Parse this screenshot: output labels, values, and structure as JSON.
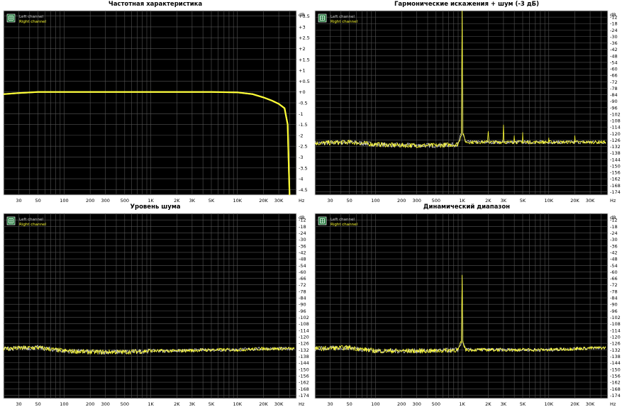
{
  "legend": {
    "left": "Left channel",
    "right": "Right channel"
  },
  "colors": {
    "background": "#000000",
    "grid": "#555555",
    "left": "#c8c8c8",
    "right": "#ffff33",
    "frame": "#d8d8d8",
    "axis_text": "#000000"
  },
  "x_ticks": [
    {
      "v": 30,
      "label": "30"
    },
    {
      "v": 50,
      "label": "50"
    },
    {
      "v": 100,
      "label": "100"
    },
    {
      "v": 200,
      "label": "200"
    },
    {
      "v": 300,
      "label": "300"
    },
    {
      "v": 500,
      "label": "500"
    },
    {
      "v": 1000,
      "label": "1K"
    },
    {
      "v": 2000,
      "label": "2K"
    },
    {
      "v": 3000,
      "label": "3K"
    },
    {
      "v": 5000,
      "label": "5K"
    },
    {
      "v": 10000,
      "label": "10K"
    },
    {
      "v": 20000,
      "label": "20K"
    },
    {
      "v": 30000,
      "label": "30K"
    }
  ],
  "x_unit": "Hz",
  "y_unit": "dB",
  "chart_data": [
    {
      "type": "line",
      "title": "Частотная характеристика",
      "x_scale": "log",
      "xlim": [
        20,
        48000
      ],
      "ylim": [
        -4.75,
        3.75
      ],
      "y_ticks": [
        {
          "v": 3.5,
          "label": "+3.5"
        },
        {
          "v": 3,
          "label": "+3"
        },
        {
          "v": 2.5,
          "label": "+2.5"
        },
        {
          "v": 2,
          "label": "+2"
        },
        {
          "v": 1.5,
          "label": "+1.5"
        },
        {
          "v": 1,
          "label": "+1"
        },
        {
          "v": 0.5,
          "label": "+0.5"
        },
        {
          "v": 0,
          "label": "+0"
        },
        {
          "v": -0.5,
          "label": "-0.5"
        },
        {
          "v": -1,
          "label": "-1"
        },
        {
          "v": -1.5,
          "label": "-1.5"
        },
        {
          "v": -2,
          "label": "-2"
        },
        {
          "v": -2.5,
          "label": "-2.5"
        },
        {
          "v": -3,
          "label": "-3"
        },
        {
          "v": -3.5,
          "label": "-3.5"
        },
        {
          "v": -4,
          "label": "-4"
        },
        {
          "v": -4.5,
          "label": "-4.5"
        }
      ],
      "series": [
        {
          "name": "Left channel",
          "noise": 0,
          "points": [
            [
              20,
              -0.1
            ],
            [
              30,
              -0.05
            ],
            [
              50,
              0
            ],
            [
              100,
              0
            ],
            [
              1000,
              0
            ],
            [
              5000,
              0
            ],
            [
              10000,
              -0.02
            ],
            [
              15000,
              -0.1
            ],
            [
              20000,
              -0.25
            ],
            [
              25000,
              -0.4
            ],
            [
              30000,
              -0.55
            ],
            [
              35000,
              -0.75
            ],
            [
              38000,
              -1.5
            ],
            [
              40000,
              -4.8
            ]
          ]
        },
        {
          "name": "Right channel",
          "noise": 0,
          "points": [
            [
              20,
              -0.1
            ],
            [
              30,
              -0.05
            ],
            [
              50,
              0
            ],
            [
              100,
              0
            ],
            [
              1000,
              0
            ],
            [
              5000,
              0
            ],
            [
              10000,
              -0.02
            ],
            [
              15000,
              -0.1
            ],
            [
              20000,
              -0.25
            ],
            [
              25000,
              -0.4
            ],
            [
              30000,
              -0.55
            ],
            [
              35000,
              -0.75
            ],
            [
              38000,
              -1.5
            ],
            [
              40000,
              -4.8
            ]
          ]
        }
      ]
    },
    {
      "type": "line",
      "title": "Гармонические искажения + шум (-3 дБ)",
      "x_scale": "log",
      "xlim": [
        20,
        48000
      ],
      "ylim": [
        -177,
        -6
      ],
      "y_ticks": [
        {
          "v": -12,
          "label": "-12"
        },
        {
          "v": -18,
          "label": "-18"
        },
        {
          "v": -24,
          "label": "-24"
        },
        {
          "v": -30,
          "label": "-30"
        },
        {
          "v": -36,
          "label": "-36"
        },
        {
          "v": -42,
          "label": "-42"
        },
        {
          "v": -48,
          "label": "-48"
        },
        {
          "v": -54,
          "label": "-54"
        },
        {
          "v": -60,
          "label": "-60"
        },
        {
          "v": -66,
          "label": "-66"
        },
        {
          "v": -72,
          "label": "-72"
        },
        {
          "v": -78,
          "label": "-78"
        },
        {
          "v": -84,
          "label": "-84"
        },
        {
          "v": -90,
          "label": "-90"
        },
        {
          "v": -96,
          "label": "-96"
        },
        {
          "v": -102,
          "label": "-102"
        },
        {
          "v": -108,
          "label": "-108"
        },
        {
          "v": -114,
          "label": "-114"
        },
        {
          "v": -120,
          "label": "-120"
        },
        {
          "v": -126,
          "label": "-126"
        },
        {
          "v": -132,
          "label": "-132"
        },
        {
          "v": -138,
          "label": "-138"
        },
        {
          "v": -144,
          "label": "-144"
        },
        {
          "v": -150,
          "label": "-150"
        },
        {
          "v": -156,
          "label": "-156"
        },
        {
          "v": -162,
          "label": "-162"
        },
        {
          "v": -168,
          "label": "-168"
        },
        {
          "v": -174,
          "label": "-174"
        }
      ],
      "series": [
        {
          "name": "Left channel",
          "noise": 2,
          "points": [
            [
              20,
              -129
            ],
            [
              50,
              -128
            ],
            [
              100,
              -130
            ],
            [
              200,
              -131
            ],
            [
              500,
              -131
            ],
            [
              900,
              -130
            ],
            [
              980,
              -120
            ],
            [
              1000,
              -3
            ],
            [
              1020,
              -120
            ],
            [
              1100,
              -128
            ],
            [
              2000,
              -128
            ],
            [
              3000,
              -128
            ],
            [
              5000,
              -128
            ],
            [
              10000,
              -128
            ],
            [
              20000,
              -128
            ],
            [
              45000,
              -128
            ]
          ]
        },
        {
          "name": "Right channel",
          "noise": 2,
          "points": [
            [
              20,
              -129
            ],
            [
              50,
              -128
            ],
            [
              100,
              -130
            ],
            [
              200,
              -131
            ],
            [
              500,
              -131
            ],
            [
              900,
              -130
            ],
            [
              980,
              -120
            ],
            [
              1000,
              -3
            ],
            [
              1020,
              -120
            ],
            [
              1100,
              -128
            ],
            [
              1950,
              -128
            ],
            [
              2000,
              -118
            ],
            [
              2050,
              -128
            ],
            [
              2950,
              -128
            ],
            [
              3000,
              -112
            ],
            [
              3050,
              -128
            ],
            [
              3950,
              -128
            ],
            [
              4000,
              -122
            ],
            [
              4050,
              -128
            ],
            [
              4950,
              -128
            ],
            [
              5000,
              -119
            ],
            [
              5050,
              -128
            ],
            [
              9900,
              -128
            ],
            [
              10000,
              -124
            ],
            [
              10100,
              -128
            ],
            [
              19800,
              -128
            ],
            [
              20000,
              -122
            ],
            [
              20200,
              -128
            ],
            [
              45000,
              -128
            ]
          ]
        }
      ]
    },
    {
      "type": "line",
      "title": "Уровень шума",
      "x_scale": "log",
      "xlim": [
        20,
        48000
      ],
      "ylim": [
        -177,
        -6
      ],
      "y_ticks": [
        {
          "v": -12,
          "label": "-12"
        },
        {
          "v": -18,
          "label": "-18"
        },
        {
          "v": -24,
          "label": "-24"
        },
        {
          "v": -30,
          "label": "-30"
        },
        {
          "v": -36,
          "label": "-36"
        },
        {
          "v": -42,
          "label": "-42"
        },
        {
          "v": -48,
          "label": "-48"
        },
        {
          "v": -54,
          "label": "-54"
        },
        {
          "v": -60,
          "label": "-60"
        },
        {
          "v": -66,
          "label": "-66"
        },
        {
          "v": -72,
          "label": "-72"
        },
        {
          "v": -78,
          "label": "-78"
        },
        {
          "v": -84,
          "label": "-84"
        },
        {
          "v": -90,
          "label": "-90"
        },
        {
          "v": -96,
          "label": "-96"
        },
        {
          "v": -102,
          "label": "-102"
        },
        {
          "v": -108,
          "label": "-108"
        },
        {
          "v": -114,
          "label": "-114"
        },
        {
          "v": -120,
          "label": "-120"
        },
        {
          "v": -126,
          "label": "-126"
        },
        {
          "v": -132,
          "label": "-132"
        },
        {
          "v": -138,
          "label": "-138"
        },
        {
          "v": -144,
          "label": "-144"
        },
        {
          "v": -150,
          "label": "-150"
        },
        {
          "v": -156,
          "label": "-156"
        },
        {
          "v": -162,
          "label": "-162"
        },
        {
          "v": -168,
          "label": "-168"
        },
        {
          "v": -174,
          "label": "-174"
        }
      ],
      "series": [
        {
          "name": "Left channel",
          "noise": 2,
          "points": [
            [
              20,
              -131
            ],
            [
              50,
              -130
            ],
            [
              100,
              -133
            ],
            [
              200,
              -134
            ],
            [
              500,
              -134
            ],
            [
              1000,
              -133
            ],
            [
              2000,
              -133
            ],
            [
              5000,
              -132
            ],
            [
              10000,
              -132
            ],
            [
              20000,
              -131
            ],
            [
              45000,
              -131
            ]
          ]
        },
        {
          "name": "Right channel",
          "noise": 2,
          "points": [
            [
              20,
              -131
            ],
            [
              50,
              -130
            ],
            [
              100,
              -133
            ],
            [
              200,
              -134
            ],
            [
              500,
              -134
            ],
            [
              1000,
              -133
            ],
            [
              2000,
              -133
            ],
            [
              5000,
              -132
            ],
            [
              10000,
              -132
            ],
            [
              20000,
              -131
            ],
            [
              45000,
              -131
            ]
          ]
        }
      ]
    },
    {
      "type": "line",
      "title": "Динамический диапазон",
      "x_scale": "log",
      "xlim": [
        20,
        48000
      ],
      "ylim": [
        -177,
        -6
      ],
      "y_ticks": [
        {
          "v": -12,
          "label": "-12"
        },
        {
          "v": -18,
          "label": "-18"
        },
        {
          "v": -24,
          "label": "-24"
        },
        {
          "v": -30,
          "label": "-30"
        },
        {
          "v": -36,
          "label": "-36"
        },
        {
          "v": -42,
          "label": "-42"
        },
        {
          "v": -48,
          "label": "-48"
        },
        {
          "v": -54,
          "label": "-54"
        },
        {
          "v": -60,
          "label": "-60"
        },
        {
          "v": -66,
          "label": "-66"
        },
        {
          "v": -72,
          "label": "-72"
        },
        {
          "v": -78,
          "label": "-78"
        },
        {
          "v": -84,
          "label": "-84"
        },
        {
          "v": -90,
          "label": "-90"
        },
        {
          "v": -96,
          "label": "-96"
        },
        {
          "v": -102,
          "label": "-102"
        },
        {
          "v": -108,
          "label": "-108"
        },
        {
          "v": -114,
          "label": "-114"
        },
        {
          "v": -120,
          "label": "-120"
        },
        {
          "v": -126,
          "label": "-126"
        },
        {
          "v": -132,
          "label": "-132"
        },
        {
          "v": -138,
          "label": "-138"
        },
        {
          "v": -144,
          "label": "-144"
        },
        {
          "v": -150,
          "label": "-150"
        },
        {
          "v": -156,
          "label": "-156"
        },
        {
          "v": -162,
          "label": "-162"
        },
        {
          "v": -168,
          "label": "-168"
        },
        {
          "v": -174,
          "label": "-174"
        }
      ],
      "series": [
        {
          "name": "Left channel",
          "noise": 2,
          "points": [
            [
              20,
              -131
            ],
            [
              50,
              -130
            ],
            [
              100,
              -133
            ],
            [
              200,
              -133
            ],
            [
              500,
              -133
            ],
            [
              900,
              -132
            ],
            [
              980,
              -125
            ],
            [
              1000,
              -63
            ],
            [
              1020,
              -125
            ],
            [
              1100,
              -132
            ],
            [
              2000,
              -132
            ],
            [
              5000,
              -132
            ],
            [
              10000,
              -132
            ],
            [
              20000,
              -131
            ],
            [
              45000,
              -130
            ]
          ]
        },
        {
          "name": "Right channel",
          "noise": 2,
          "points": [
            [
              20,
              -131
            ],
            [
              50,
              -130
            ],
            [
              100,
              -133
            ],
            [
              200,
              -133
            ],
            [
              500,
              -133
            ],
            [
              900,
              -132
            ],
            [
              980,
              -125
            ],
            [
              1000,
              -63
            ],
            [
              1020,
              -125
            ],
            [
              1100,
              -132
            ],
            [
              2000,
              -132
            ],
            [
              5000,
              -132
            ],
            [
              10000,
              -132
            ],
            [
              20000,
              -131
            ],
            [
              45000,
              -130
            ]
          ]
        }
      ]
    }
  ]
}
